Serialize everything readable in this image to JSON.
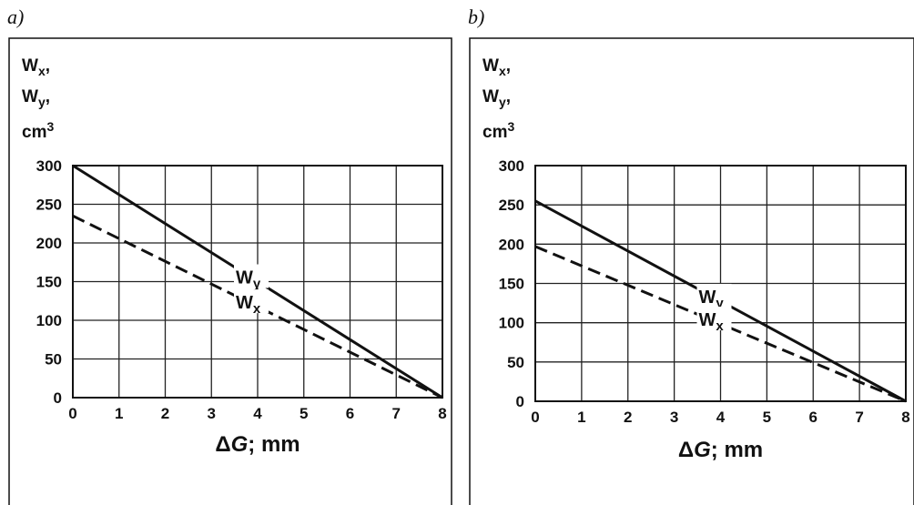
{
  "chart_data": [
    {
      "panel": "a)",
      "type": "line",
      "ylabel_lines": [
        "Wx,",
        "Wy,",
        "cm3"
      ],
      "xlabel": "ΔG; mm",
      "x_ticks": [
        0,
        1,
        2,
        3,
        4,
        5,
        6,
        7,
        8
      ],
      "y_ticks": [
        0,
        50,
        100,
        150,
        200,
        250,
        300
      ],
      "xlim": [
        0,
        8
      ],
      "ylim": [
        0,
        300
      ],
      "grid": true,
      "series": [
        {
          "name": "Wy",
          "style": "solid",
          "x": [
            0,
            8
          ],
          "y": [
            300,
            0
          ]
        },
        {
          "name": "Wx",
          "style": "dashed",
          "x": [
            0,
            8
          ],
          "y": [
            235,
            0
          ]
        }
      ]
    },
    {
      "panel": "b)",
      "type": "line",
      "ylabel_lines": [
        "Wx,",
        "Wy,",
        "cm3"
      ],
      "xlabel": "ΔG; mm",
      "x_ticks": [
        0,
        1,
        2,
        3,
        4,
        5,
        6,
        7,
        8
      ],
      "y_ticks": [
        0,
        50,
        100,
        150,
        200,
        250,
        300
      ],
      "xlim": [
        0,
        8
      ],
      "ylim": [
        0,
        300
      ],
      "grid": true,
      "series": [
        {
          "name": "Wy",
          "style": "solid",
          "x": [
            0,
            8
          ],
          "y": [
            255,
            0
          ]
        },
        {
          "name": "Wx",
          "style": "dashed",
          "x": [
            0,
            8
          ],
          "y": [
            197,
            0
          ]
        }
      ]
    }
  ]
}
